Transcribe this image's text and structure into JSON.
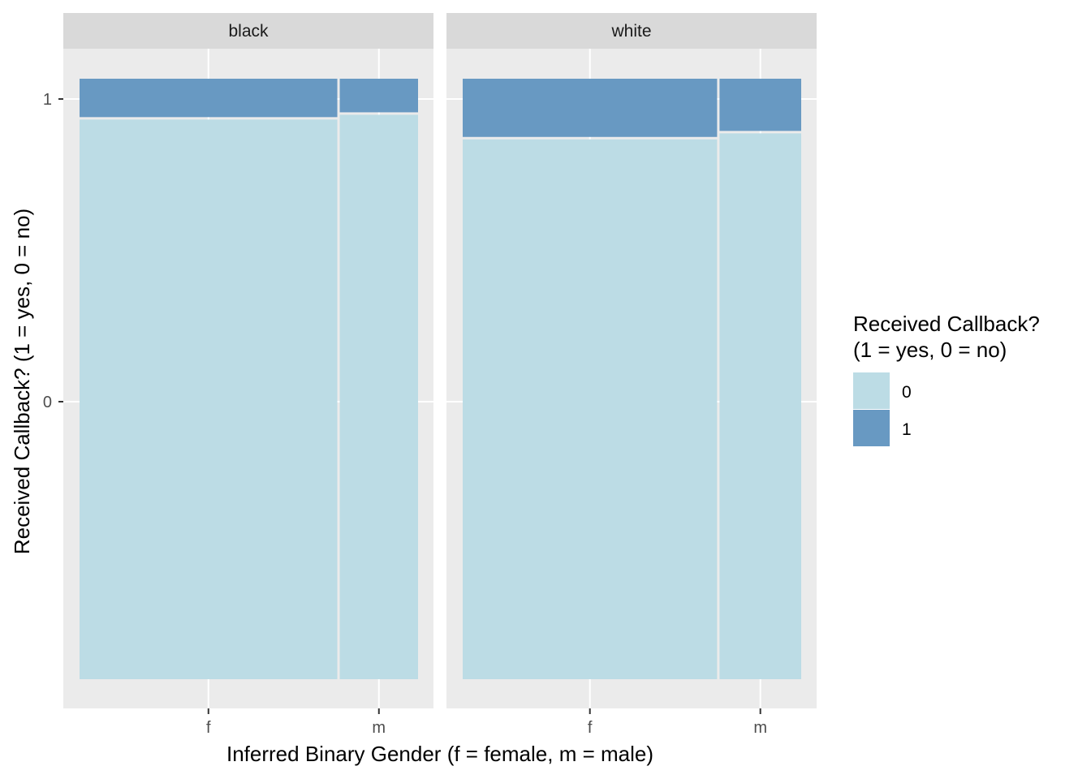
{
  "chart_data": {
    "type": "mosaic",
    "xlabel": "Inferred Binary Gender (f = female, m = male)",
    "ylabel": "Received Callback? (1 = yes, 0 = no)",
    "y_ticks": [
      "0",
      "1"
    ],
    "legend": {
      "title_lines": [
        "Received Callback?",
        "(1 = yes, 0 = no)"
      ],
      "placement": "right",
      "entries": [
        {
          "label": "0",
          "color": "#bcdce5"
        },
        {
          "label": "1",
          "color": "#6899c2"
        }
      ]
    },
    "panels": [
      {
        "name": "black",
        "categories": [
          "f",
          "m"
        ],
        "column_shares": [
          0.767,
          0.233
        ],
        "callback_rate": [
          0.066,
          0.058
        ]
      },
      {
        "name": "white",
        "categories": [
          "f",
          "m"
        ],
        "column_shares": [
          0.757,
          0.243
        ],
        "callback_rate": [
          0.099,
          0.089
        ]
      }
    ]
  },
  "colors": {
    "panel_background": "#ebebeb",
    "strip_background": "#d9d9d9",
    "gridline": "#ffffff",
    "fill_0": "#bcdce5",
    "fill_1": "#6899c2"
  }
}
